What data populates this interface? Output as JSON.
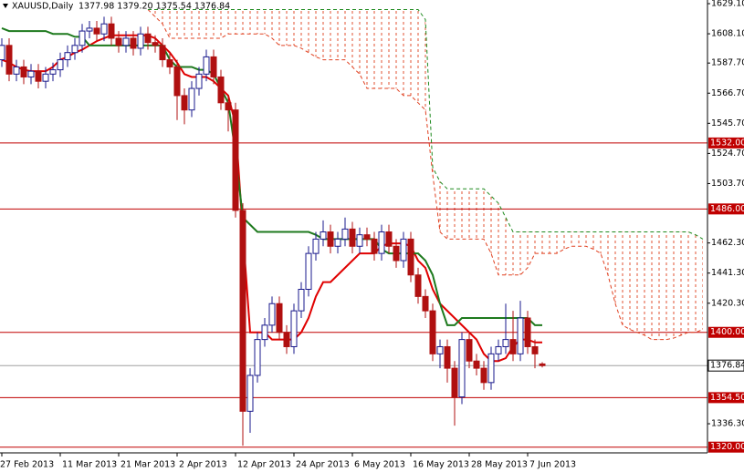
{
  "header": {
    "symbol": "XAUUSD,Daily",
    "ohlc": "1377.98 1379.20 1375.54 1376.84"
  },
  "chart_data": {
    "type": "candlestick",
    "categories": [
      "27 Feb 2013",
      null,
      null,
      null,
      null,
      null,
      null,
      null,
      "11 Mar 2013",
      null,
      null,
      null,
      null,
      null,
      null,
      null,
      "21 Mar 2013",
      null,
      null,
      null,
      null,
      null,
      null,
      null,
      "2 Apr 2013",
      null,
      null,
      null,
      null,
      null,
      null,
      null,
      "12 Apr 2013",
      null,
      null,
      null,
      null,
      null,
      null,
      null,
      "24 Apr 2013",
      null,
      null,
      null,
      null,
      null,
      null,
      null,
      "6 May 2013",
      null,
      null,
      null,
      null,
      null,
      null,
      null,
      "16 May 2013",
      null,
      null,
      null,
      null,
      null,
      null,
      null,
      "28 May 2013",
      null,
      null,
      null,
      null,
      null,
      null,
      null,
      "7 Jun 2013",
      null,
      null,
      null,
      null,
      null,
      null,
      null,
      null,
      null,
      null,
      null,
      null,
      null,
      null,
      null,
      null,
      null,
      null,
      null,
      null,
      null,
      null,
      null,
      null
    ],
    "open": [
      1590,
      1600,
      1580,
      1585,
      1578,
      1582,
      1575,
      1580,
      1583,
      1590,
      1595,
      1600,
      1610,
      1612,
      1608,
      1615,
      1605,
      1600,
      1605,
      1598,
      1608,
      1602,
      1600,
      1590,
      1585,
      1565,
      1555,
      1570,
      1580,
      1592,
      1578,
      1560,
      1555,
      1485,
      1345,
      1370,
      1395,
      1405,
      1420,
      1400,
      1390,
      1415,
      1430,
      1455,
      1465,
      1470,
      1460,
      1465,
      1472,
      1460,
      1468,
      1465,
      1455,
      1470,
      1460,
      1450,
      1465,
      1440,
      1425,
      1415,
      1385,
      1390,
      1375,
      1355,
      1395,
      1380,
      1375,
      1365,
      1385,
      1390,
      1395,
      1385,
      1410,
      1390,
      1377.98,
      null,
      null,
      null,
      null,
      null,
      null,
      null,
      null,
      null,
      null,
      null,
      null,
      null,
      null,
      null,
      null,
      null,
      null,
      null,
      null,
      null,
      null
    ],
    "high": [
      1605,
      1605,
      1590,
      1590,
      1587,
      1587,
      1585,
      1588,
      1595,
      1600,
      1605,
      1615,
      1617,
      1617,
      1620,
      1620,
      1610,
      1610,
      1610,
      1613,
      1613,
      1607,
      1605,
      1595,
      1590,
      1570,
      1575,
      1585,
      1597,
      1597,
      1583,
      1565,
      1560,
      1490,
      1375,
      1400,
      1410,
      1425,
      1425,
      1405,
      1420,
      1435,
      1460,
      1470,
      1478,
      1475,
      1470,
      1480,
      1477,
      1473,
      1473,
      1470,
      1475,
      1475,
      1465,
      1470,
      1470,
      1445,
      1430,
      1420,
      1395,
      1395,
      1380,
      1400,
      1400,
      1385,
      1380,
      1390,
      1395,
      1420,
      1415,
      1422,
      1415,
      1395,
      1379.2,
      null,
      null,
      null,
      null,
      null,
      null,
      null,
      null,
      null,
      null,
      null,
      null,
      null,
      null,
      null,
      null,
      null,
      null,
      null,
      null,
      null,
      null
    ],
    "low": [
      1585,
      1575,
      1575,
      1573,
      1573,
      1570,
      1570,
      1575,
      1578,
      1585,
      1590,
      1595,
      1605,
      1603,
      1603,
      1600,
      1595,
      1595,
      1593,
      1593,
      1597,
      1595,
      1585,
      1580,
      1548,
      1545,
      1550,
      1565,
      1575,
      1573,
      1555,
      1540,
      1480,
      1321,
      1330,
      1365,
      1390,
      1400,
      1395,
      1385,
      1385,
      1410,
      1425,
      1450,
      1460,
      1455,
      1455,
      1460,
      1455,
      1455,
      1460,
      1450,
      1450,
      1455,
      1445,
      1445,
      1435,
      1420,
      1410,
      1380,
      1375,
      1365,
      1335,
      1350,
      1375,
      1370,
      1360,
      1360,
      1380,
      1385,
      1380,
      1380,
      1385,
      1375,
      1375.54,
      null,
      null,
      null,
      null,
      null,
      null,
      null,
      null,
      null,
      null,
      null,
      null,
      null,
      null,
      null,
      null,
      null,
      null,
      null,
      null,
      null,
      null
    ],
    "close": [
      1600,
      1580,
      1585,
      1578,
      1582,
      1575,
      1580,
      1583,
      1590,
      1595,
      1600,
      1610,
      1612,
      1608,
      1615,
      1605,
      1600,
      1605,
      1598,
      1608,
      1602,
      1600,
      1590,
      1585,
      1565,
      1555,
      1570,
      1580,
      1592,
      1578,
      1560,
      1555,
      1485,
      1345,
      1370,
      1395,
      1405,
      1420,
      1400,
      1390,
      1415,
      1430,
      1455,
      1465,
      1470,
      1460,
      1465,
      1472,
      1460,
      1468,
      1465,
      1455,
      1470,
      1460,
      1450,
      1465,
      1440,
      1425,
      1415,
      1385,
      1390,
      1375,
      1355,
      1395,
      1380,
      1375,
      1365,
      1385,
      1390,
      1395,
      1385,
      1410,
      1390,
      1385,
      1376.84,
      null,
      null,
      null,
      null,
      null,
      null,
      null,
      null,
      null,
      null,
      null,
      null,
      null,
      null,
      null,
      null,
      null,
      null,
      null,
      null,
      null,
      null
    ],
    "up_color": "#ffffff",
    "up_border": "#1a1a8c",
    "down_color": "#b01010",
    "indicators": [
      {
        "color": "#e00000",
        "dash": false,
        "values": [
          1590,
          1588,
          1585,
          1583,
          1582,
          1582,
          1582,
          1585,
          1590,
          1592,
          1595,
          1597,
          1600,
          1603,
          1605,
          1607,
          1607,
          1607,
          1607,
          1607,
          1607,
          1605,
          1600,
          1595,
          1588,
          1580,
          1578,
          1578,
          1578,
          1575,
          1570,
          1565,
          1545,
          1470,
          1400,
          1400,
          1400,
          1395,
          1395,
          1395,
          1395,
          1400,
          1410,
          1425,
          1435,
          1435,
          1440,
          1445,
          1450,
          1455,
          1455,
          1455,
          1460,
          1462,
          1462,
          1462,
          1460,
          1450,
          1445,
          1430,
          1420,
          1415,
          1410,
          1405,
          1400,
          1395,
          1385,
          1380,
          1380,
          1382,
          1390,
          1395,
          1395,
          1393,
          1393,
          null,
          null,
          null,
          null,
          null,
          null,
          null,
          null,
          null,
          null,
          null,
          null,
          null,
          null,
          null,
          null,
          null,
          null,
          null,
          null,
          null,
          null
        ]
      },
      {
        "color": "#1e7a1e",
        "dash": false,
        "values": [
          1612,
          1610,
          1610,
          1610,
          1610,
          1610,
          1610,
          1608,
          1608,
          1608,
          1606,
          1606,
          1600,
          1600,
          1600,
          1600,
          1600,
          1600,
          1600,
          1600,
          1600,
          1600,
          1600,
          1590,
          1585,
          1585,
          1585,
          1583,
          1583,
          1580,
          1570,
          1560,
          1525,
          1480,
          1475,
          1470,
          1470,
          1470,
          1470,
          1470,
          1470,
          1470,
          1470,
          1468,
          1465,
          1465,
          1465,
          1465,
          1465,
          1465,
          1465,
          1465,
          1458,
          1455,
          1455,
          1455,
          1455,
          1455,
          1450,
          1440,
          1420,
          1405,
          1405,
          1410,
          1410,
          1410,
          1410,
          1410,
          1410,
          1410,
          1410,
          1410,
          1410,
          1405,
          1405,
          null,
          null,
          null,
          null,
          null,
          null,
          null,
          null,
          null,
          null,
          null,
          null,
          null,
          null,
          null,
          null,
          null,
          null,
          null,
          null,
          null,
          null
        ]
      },
      {
        "color": "#e04020",
        "dash": true,
        "values": [
          null,
          null,
          null,
          null,
          null,
          null,
          null,
          null,
          null,
          null,
          null,
          null,
          null,
          null,
          null,
          null,
          null,
          null,
          null,
          null,
          1625,
          1620,
          1615,
          1605,
          1605,
          1605,
          1605,
          1605,
          1605,
          1605,
          1605,
          1608,
          1608,
          1608,
          1608,
          1608,
          1608,
          1605,
          1600,
          1600,
          1600,
          1598,
          1595,
          1592,
          1590,
          1590,
          1590,
          1590,
          1585,
          1580,
          1570,
          1570,
          1570,
          1570,
          1570,
          1565,
          1565,
          1560,
          1555,
          1510,
          1470,
          1465,
          1465,
          1465,
          1465,
          1465,
          1465,
          1455,
          1440,
          1440,
          1440,
          1440,
          1445,
          1455,
          1455,
          1455,
          1455,
          1458,
          1460,
          1460,
          1460,
          1458,
          1455,
          1440,
          1420,
          1405,
          1402,
          1400,
          1398,
          1395,
          1395,
          1395,
          1396,
          1398,
          1400,
          1400,
          1402
        ]
      },
      {
        "color": "#1e8a1e",
        "dash": true,
        "values": [
          null,
          null,
          null,
          null,
          null,
          null,
          null,
          null,
          null,
          null,
          null,
          null,
          null,
          null,
          null,
          null,
          null,
          null,
          null,
          null,
          1625,
          1625,
          1625,
          1625,
          1625,
          1625,
          1625,
          1625,
          1625,
          1625,
          1625,
          1625,
          1625,
          1625,
          1625,
          1625,
          1625,
          1625,
          1625,
          1625,
          1625,
          1625,
          1625,
          1625,
          1625,
          1625,
          1625,
          1625,
          1625,
          1625,
          1625,
          1625,
          1625,
          1625,
          1625,
          1625,
          1625,
          1625,
          1618,
          1515,
          1505,
          1500,
          1500,
          1500,
          1500,
          1500,
          1500,
          1495,
          1490,
          1480,
          1470,
          1470,
          1470,
          1470,
          1470,
          1470,
          1470,
          1470,
          1470,
          1470,
          1470,
          1470,
          1470,
          1470,
          1470,
          1470,
          1470,
          1470,
          1470,
          1470,
          1470,
          1470,
          1470,
          1470,
          1470,
          1468,
          1465
        ]
      }
    ],
    "cloud_color": "#e05030",
    "levels": [
      {
        "value": 1532,
        "label": "1532.00",
        "color": "#c00000"
      },
      {
        "value": 1486,
        "label": "1486.00",
        "color": "#c00000"
      },
      {
        "value": 1400,
        "label": "1400.00",
        "color": "#c00000"
      },
      {
        "value": 1354.5,
        "label": "1354.50",
        "color": "#c00000"
      },
      {
        "value": 1320,
        "label": "1320.00",
        "color": "#c00000"
      }
    ],
    "current": {
      "value": 1376.84,
      "label": "1376.84",
      "color": "#a0a0a0"
    },
    "ylim": [
      1316,
      1631.64
    ],
    "yticks": [
      {
        "value": 1629.1,
        "label": "1629.10"
      },
      {
        "value": 1608.1,
        "label": "1608.10"
      },
      {
        "value": 1587.7,
        "label": "1587.70"
      },
      {
        "value": 1566.7,
        "label": "1566.70"
      },
      {
        "value": 1545.7,
        "label": "1545.70"
      },
      {
        "value": 1524.7,
        "label": "1524.70"
      },
      {
        "value": 1503.7,
        "label": "1503.70"
      },
      {
        "value": 1462.3,
        "label": "1462.30"
      },
      {
        "value": 1441.3,
        "label": "1441.30"
      },
      {
        "value": 1420.3,
        "label": "1420.30"
      },
      {
        "value": 1336.3,
        "label": "1336.30"
      }
    ]
  }
}
